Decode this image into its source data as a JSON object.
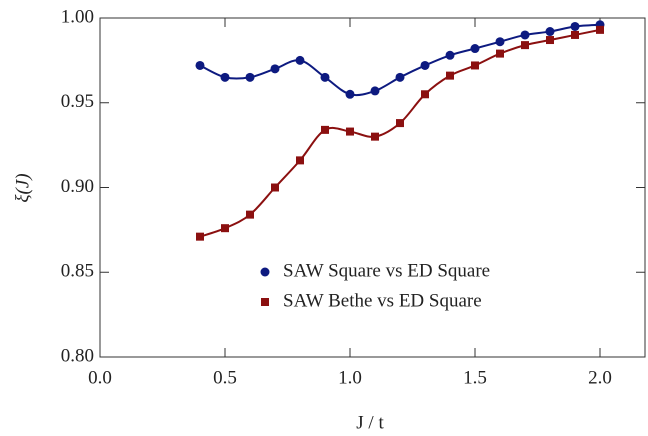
{
  "chart_data": {
    "type": "line",
    "x_label": "J / t",
    "y_label": "ξ(J)",
    "x": [
      0.4,
      0.5,
      0.6,
      0.7,
      0.8,
      0.9,
      1.0,
      1.1,
      1.2,
      1.3,
      1.4,
      1.5,
      1.6,
      1.7,
      1.8,
      1.9,
      2.0
    ],
    "series": [
      {
        "name": "SAW Square vs ED Square",
        "color": "#0d1a80",
        "marker": "circle",
        "values": [
          0.972,
          0.965,
          0.965,
          0.97,
          0.975,
          0.965,
          0.955,
          0.957,
          0.965,
          0.972,
          0.978,
          0.982,
          0.986,
          0.99,
          0.992,
          0.995,
          0.996
        ]
      },
      {
        "name": "SAW Bethe vs ED Square",
        "color": "#8b1010",
        "marker": "square",
        "values": [
          0.871,
          0.876,
          0.884,
          0.9,
          0.916,
          0.934,
          0.933,
          0.93,
          0.938,
          0.955,
          0.966,
          0.972,
          0.979,
          0.984,
          0.987,
          0.99,
          0.993
        ]
      }
    ],
    "xlim": [
      0,
      2.18
    ],
    "ylim": [
      0.8,
      1.0
    ],
    "xticks": [
      {
        "value": 0,
        "label": "0.0"
      },
      {
        "value": 0.5,
        "label": "0.5"
      },
      {
        "value": 1,
        "label": "1.0"
      },
      {
        "value": 1.5,
        "label": "1.5"
      },
      {
        "value": 2,
        "label": "2.0"
      }
    ],
    "yticks": [
      {
        "value": 0.8,
        "label": "0.80"
      },
      {
        "value": 0.85,
        "label": "0.85"
      },
      {
        "value": 0.9,
        "label": "0.90"
      },
      {
        "value": 0.95,
        "label": "0.95"
      },
      {
        "value": 1.0,
        "label": "1.00"
      }
    ],
    "grid": false
  }
}
